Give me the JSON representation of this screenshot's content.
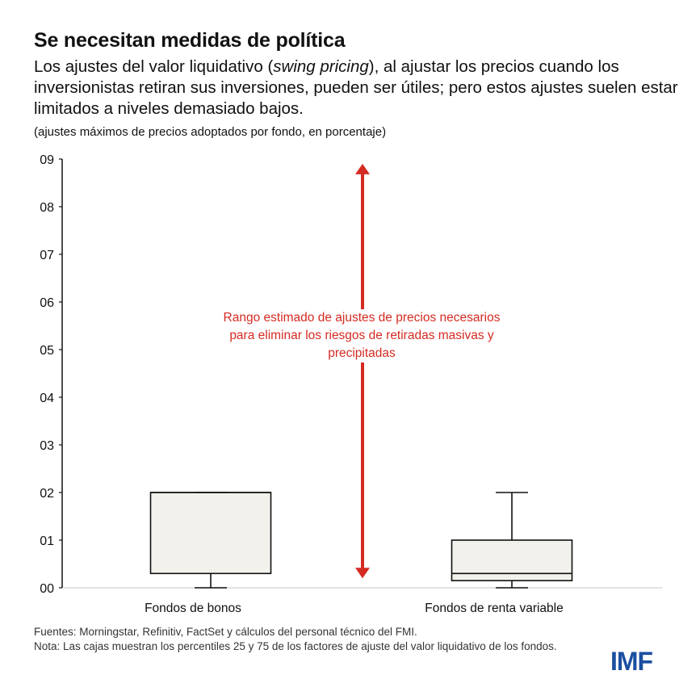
{
  "title": "Se necesitan medidas de política",
  "subtitle": {
    "before": "Los ajustes del valor liquidativo (",
    "italic": "swing pricing",
    "after": "), al ajustar los precios cuando los inversionistas retiran sus inversiones, pueden ser útiles; pero estos ajustes suelen estar limitados a niveles demasiado bajos."
  },
  "units": "(ajustes máximos de precios adoptados por fondo, en porcentaje)",
  "chart_data": {
    "type": "boxplot",
    "title": "",
    "xlabel": "",
    "ylabel": "",
    "ylim": [
      0,
      9
    ],
    "ytick_labels": [
      "00",
      "01",
      "02",
      "03",
      "04",
      "05",
      "06",
      "07",
      "08",
      "09"
    ],
    "grid": false,
    "categories": [
      "Fondos de bonos",
      "Fondos de renta variable"
    ],
    "boxes": [
      {
        "category": "Fondos de bonos",
        "min": 0,
        "q1": 0.3,
        "median": 2,
        "q3": 2,
        "max": 2
      },
      {
        "category": "Fondos de renta variable",
        "min": 0,
        "q1": 0.15,
        "median": 0.3,
        "q3": 1,
        "max": 2
      }
    ],
    "range_arrow": {
      "from": 0.2,
      "to": 8.9,
      "color": "#d42b22",
      "label": "Rango estimado de ajustes de precios necesarios para eliminar los riesgos de retiradas masivas y precipitadas"
    },
    "box_fill": "#f2f1eb"
  },
  "notes": {
    "sources": "Fuentes: Morningstar, Refinitiv, FactSet y cálculos del personal técnico del FMI.",
    "note": "Nota: Las cajas muestran los percentiles 25 y 75 de los factores de ajuste del valor liquidativo de los fondos."
  },
  "logo": "IMF",
  "colors": {
    "accent": "#d42b22",
    "logo": "#1b4fa0"
  }
}
